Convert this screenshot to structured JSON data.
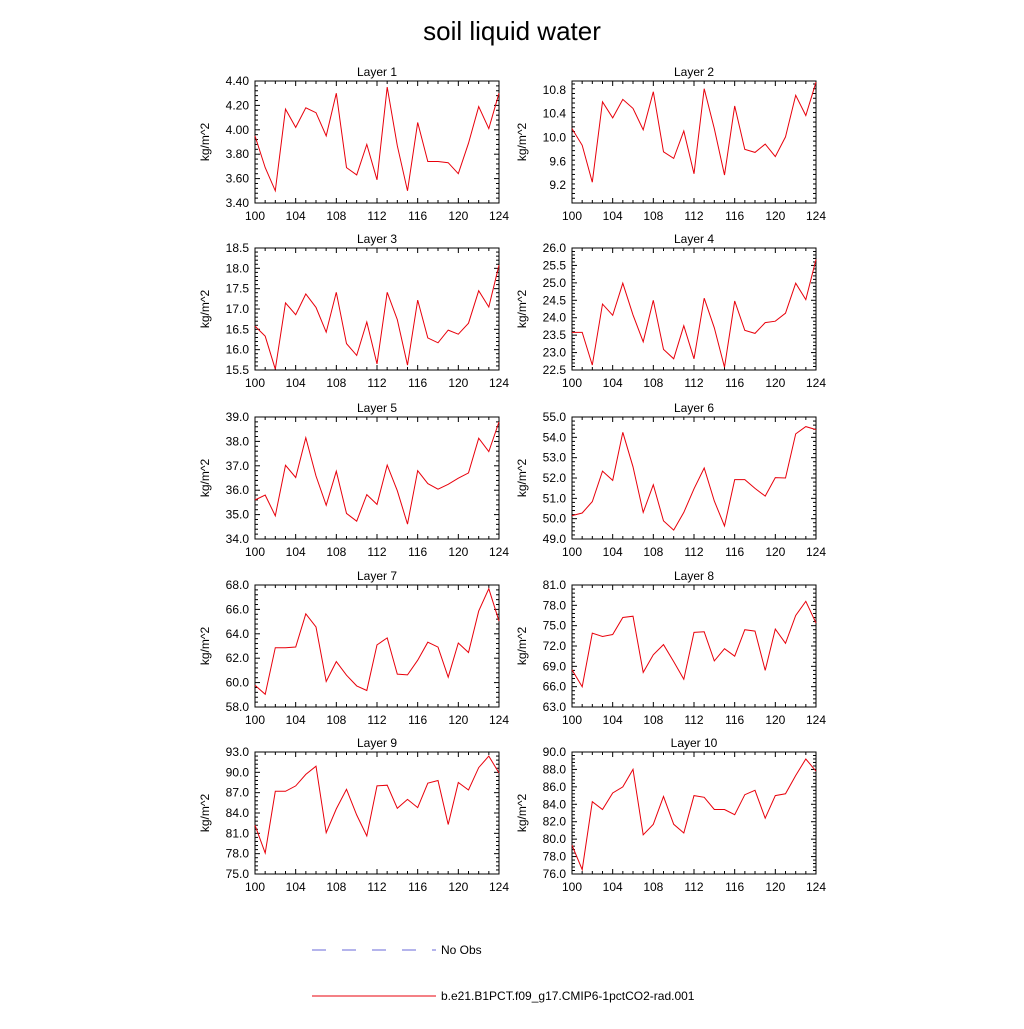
{
  "figure": {
    "title": "soil liquid water",
    "colors": {
      "model_line": "#e8000b",
      "obs_line": "#6a6ad8",
      "axis": "#000000"
    },
    "legend": {
      "placement": "bottom-center",
      "entries": [
        {
          "label": "No Obs",
          "style": "dashed",
          "color": "#6a6ad8"
        },
        {
          "label": "b.e21.B1PCT.f09_g17.CMIP6-1pctCO2-rad.001",
          "style": "solid",
          "color": "#e8000b"
        }
      ]
    }
  },
  "chart_data": [
    {
      "type": "line",
      "title": "Layer 1",
      "ylabel": "kg/m^2",
      "xlim": [
        100,
        124
      ],
      "xticks": [
        "100",
        "104",
        "108",
        "112",
        "116",
        "120",
        "124"
      ],
      "ylim": [
        3.4,
        4.4
      ],
      "yticks": [
        "3.40",
        "3.60",
        "3.80",
        "4.00",
        "4.20",
        "4.40"
      ],
      "x": [
        100,
        101,
        102,
        103,
        104,
        105,
        106,
        107,
        108,
        109,
        110,
        111,
        112,
        113,
        114,
        115,
        116,
        117,
        118,
        119,
        120,
        121,
        122,
        123,
        124
      ],
      "series": [
        {
          "values": [
            3.95,
            3.69,
            3.5,
            4.17,
            4.02,
            4.18,
            4.14,
            3.95,
            4.3,
            3.69,
            3.63,
            3.88,
            3.59,
            4.35,
            3.87,
            3.5,
            4.06,
            3.74,
            3.74,
            3.73,
            3.64,
            3.89,
            4.19,
            4.01,
            4.3
          ]
        }
      ]
    },
    {
      "type": "line",
      "title": "Layer 2",
      "ylabel": "kg/m^2",
      "xlim": [
        100,
        124
      ],
      "xticks": [
        "100",
        "104",
        "108",
        "112",
        "116",
        "120",
        "124"
      ],
      "ylim": [
        8.9,
        10.95
      ],
      "yticks": [
        "9.2",
        "9.6",
        "10.0",
        "10.4",
        "10.8"
      ],
      "x": [
        100,
        101,
        102,
        103,
        104,
        105,
        106,
        107,
        108,
        109,
        110,
        111,
        112,
        113,
        114,
        115,
        116,
        117,
        118,
        119,
        120,
        121,
        122,
        123,
        124
      ],
      "series": [
        {
          "values": [
            10.15,
            9.87,
            9.25,
            10.6,
            10.33,
            10.64,
            10.49,
            10.13,
            10.77,
            9.76,
            9.65,
            10.11,
            9.39,
            10.82,
            10.15,
            9.37,
            10.53,
            9.8,
            9.75,
            9.89,
            9.68,
            10.01,
            10.71,
            10.37,
            10.93
          ]
        }
      ]
    },
    {
      "type": "line",
      "title": "Layer 3",
      "ylabel": "kg/m^2",
      "xlim": [
        100,
        124
      ],
      "xticks": [
        "100",
        "104",
        "108",
        "112",
        "116",
        "120",
        "124"
      ],
      "ylim": [
        15.5,
        18.5
      ],
      "yticks": [
        "15.5",
        "16.0",
        "16.5",
        "17.0",
        "17.5",
        "18.0",
        "18.5"
      ],
      "x": [
        100,
        101,
        102,
        103,
        104,
        105,
        106,
        107,
        108,
        109,
        110,
        111,
        112,
        113,
        114,
        115,
        116,
        117,
        118,
        119,
        120,
        121,
        122,
        123,
        124
      ],
      "series": [
        {
          "values": [
            16.58,
            16.33,
            15.52,
            17.15,
            16.86,
            17.37,
            17.04,
            16.43,
            17.41,
            16.15,
            15.86,
            16.68,
            15.65,
            17.41,
            16.74,
            15.62,
            17.22,
            16.29,
            16.17,
            16.48,
            16.38,
            16.65,
            17.45,
            17.05,
            18.08
          ]
        }
      ]
    },
    {
      "type": "line",
      "title": "Layer 4",
      "ylabel": "kg/m^2",
      "xlim": [
        100,
        124
      ],
      "xticks": [
        "100",
        "104",
        "108",
        "112",
        "116",
        "120",
        "124"
      ],
      "ylim": [
        22.5,
        26.0
      ],
      "yticks": [
        "22.5",
        "23.0",
        "23.5",
        "24.0",
        "24.5",
        "25.0",
        "25.5",
        "26.0"
      ],
      "x": [
        100,
        101,
        102,
        103,
        104,
        105,
        106,
        107,
        108,
        109,
        110,
        111,
        112,
        113,
        114,
        115,
        116,
        117,
        118,
        119,
        120,
        121,
        122,
        123,
        124
      ],
      "series": [
        {
          "values": [
            23.58,
            23.58,
            22.64,
            24.39,
            24.07,
            24.99,
            24.08,
            23.31,
            24.5,
            23.09,
            22.82,
            23.77,
            22.82,
            24.56,
            23.71,
            22.58,
            24.48,
            23.64,
            23.55,
            23.86,
            23.9,
            24.13,
            24.99,
            24.52,
            25.67
          ]
        }
      ]
    },
    {
      "type": "line",
      "title": "Layer 5",
      "ylabel": "kg/m^2",
      "xlim": [
        100,
        124
      ],
      "xticks": [
        "100",
        "104",
        "108",
        "112",
        "116",
        "120",
        "124"
      ],
      "ylim": [
        34.0,
        39.0
      ],
      "yticks": [
        "34.0",
        "35.0",
        "36.0",
        "37.0",
        "38.0",
        "39.0"
      ],
      "x": [
        100,
        101,
        102,
        103,
        104,
        105,
        106,
        107,
        108,
        109,
        110,
        111,
        112,
        113,
        114,
        115,
        116,
        117,
        118,
        119,
        120,
        121,
        122,
        123,
        124
      ],
      "series": [
        {
          "values": [
            35.6,
            35.8,
            34.95,
            37.02,
            36.52,
            38.15,
            36.58,
            35.38,
            36.78,
            35.05,
            34.73,
            35.82,
            35.42,
            37.03,
            35.98,
            34.61,
            36.8,
            36.27,
            36.04,
            36.24,
            36.49,
            36.71,
            38.13,
            37.58,
            38.8
          ]
        }
      ]
    },
    {
      "type": "line",
      "title": "Layer 6",
      "ylabel": "kg/m^2",
      "xlim": [
        100,
        124
      ],
      "xticks": [
        "100",
        "104",
        "108",
        "112",
        "116",
        "120",
        "124"
      ],
      "ylim": [
        49.0,
        55.0
      ],
      "yticks": [
        "49.0",
        "50.0",
        "51.0",
        "52.0",
        "53.0",
        "54.0",
        "55.0"
      ],
      "x": [
        100,
        101,
        102,
        103,
        104,
        105,
        106,
        107,
        108,
        109,
        110,
        111,
        112,
        113,
        114,
        115,
        116,
        117,
        118,
        119,
        120,
        121,
        122,
        123,
        124
      ],
      "series": [
        {
          "values": [
            50.15,
            50.28,
            50.84,
            52.34,
            51.88,
            54.25,
            52.55,
            50.31,
            51.67,
            49.89,
            49.44,
            50.31,
            51.47,
            52.49,
            50.87,
            49.64,
            51.92,
            51.92,
            51.49,
            51.11,
            52.02,
            52.0,
            54.17,
            54.53,
            54.38
          ]
        }
      ]
    },
    {
      "type": "line",
      "title": "Layer 7",
      "ylabel": "kg/m^2",
      "xlim": [
        100,
        124
      ],
      "xticks": [
        "100",
        "104",
        "108",
        "112",
        "116",
        "120",
        "124"
      ],
      "ylim": [
        58.0,
        68.0
      ],
      "yticks": [
        "58.0",
        "60.0",
        "62.0",
        "64.0",
        "66.0",
        "68.0"
      ],
      "x": [
        100,
        101,
        102,
        103,
        104,
        105,
        106,
        107,
        108,
        109,
        110,
        111,
        112,
        113,
        114,
        115,
        116,
        117,
        118,
        119,
        120,
        121,
        122,
        123,
        124
      ],
      "series": [
        {
          "values": [
            59.79,
            59.04,
            62.86,
            62.86,
            62.92,
            65.64,
            64.56,
            60.09,
            61.72,
            60.61,
            59.73,
            59.35,
            63.09,
            63.66,
            60.7,
            60.63,
            61.84,
            63.31,
            62.91,
            60.44,
            63.25,
            62.47,
            65.86,
            67.7,
            65.04
          ]
        }
      ]
    },
    {
      "type": "line",
      "title": "Layer 8",
      "ylabel": "kg/m^2",
      "xlim": [
        100,
        124
      ],
      "xticks": [
        "100",
        "104",
        "108",
        "112",
        "116",
        "120",
        "124"
      ],
      "ylim": [
        63.0,
        81.0
      ],
      "yticks": [
        "63.0",
        "66.0",
        "69.0",
        "72.0",
        "75.0",
        "78.0",
        "81.0"
      ],
      "x": [
        100,
        101,
        102,
        103,
        104,
        105,
        106,
        107,
        108,
        109,
        110,
        111,
        112,
        113,
        114,
        115,
        116,
        117,
        118,
        119,
        120,
        121,
        122,
        123,
        124
      ],
      "series": [
        {
          "values": [
            68.5,
            66.0,
            73.9,
            73.4,
            73.7,
            76.2,
            76.4,
            68.1,
            70.7,
            72.2,
            69.7,
            67.1,
            74.0,
            74.1,
            69.8,
            71.6,
            70.5,
            74.4,
            74.2,
            68.4,
            74.5,
            72.4,
            76.5,
            78.6,
            75.4
          ]
        }
      ]
    },
    {
      "type": "line",
      "title": "Layer 9",
      "ylabel": "kg/m^2",
      "xlim": [
        100,
        124
      ],
      "xticks": [
        "100",
        "104",
        "108",
        "112",
        "116",
        "120",
        "124"
      ],
      "ylim": [
        75.0,
        93.0
      ],
      "yticks": [
        "75.0",
        "78.0",
        "81.0",
        "84.0",
        "87.0",
        "90.0",
        "93.0"
      ],
      "x": [
        100,
        101,
        102,
        103,
        104,
        105,
        106,
        107,
        108,
        109,
        110,
        111,
        112,
        113,
        114,
        115,
        116,
        117,
        118,
        119,
        120,
        121,
        122,
        123,
        124
      ],
      "series": [
        {
          "values": [
            82.2,
            78.1,
            87.2,
            87.2,
            88.0,
            89.7,
            90.9,
            81.1,
            84.6,
            87.5,
            83.7,
            80.6,
            88.0,
            88.1,
            84.7,
            86.0,
            84.8,
            88.4,
            88.8,
            82.3,
            88.5,
            87.4,
            90.7,
            92.4,
            89.9
          ]
        }
      ]
    },
    {
      "type": "line",
      "title": "Layer 10",
      "ylabel": "kg/m^2",
      "xlim": [
        100,
        124
      ],
      "xticks": [
        "100",
        "104",
        "108",
        "112",
        "116",
        "120",
        "124"
      ],
      "ylim": [
        76.0,
        90.0
      ],
      "yticks": [
        "76.0",
        "78.0",
        "80.0",
        "82.0",
        "84.0",
        "86.0",
        "88.0",
        "90.0"
      ],
      "x": [
        100,
        101,
        102,
        103,
        104,
        105,
        106,
        107,
        108,
        109,
        110,
        111,
        112,
        113,
        114,
        115,
        116,
        117,
        118,
        119,
        120,
        121,
        122,
        123,
        124
      ],
      "series": [
        {
          "values": [
            79.3,
            76.5,
            84.3,
            83.4,
            85.3,
            86.0,
            88.0,
            80.5,
            81.7,
            84.9,
            81.7,
            80.7,
            85.0,
            84.8,
            83.4,
            83.4,
            82.8,
            85.1,
            85.6,
            82.4,
            85.0,
            85.2,
            87.3,
            89.2,
            87.8
          ]
        }
      ]
    }
  ]
}
